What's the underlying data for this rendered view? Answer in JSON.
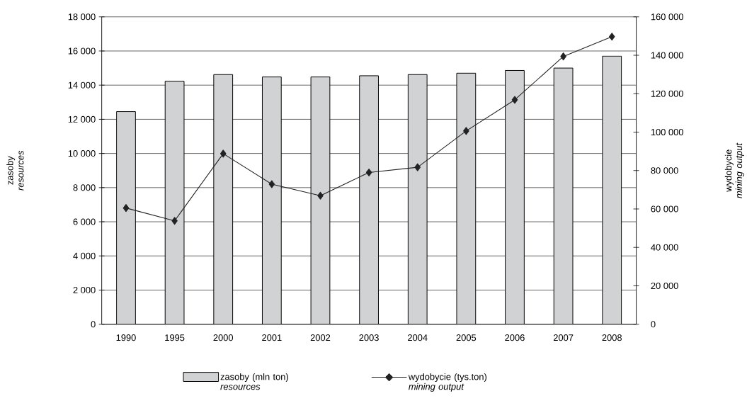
{
  "chart_data": {
    "type": "bar",
    "categories": [
      "1990",
      "1995",
      "2000",
      "2001",
      "2002",
      "2003",
      "2004",
      "2005",
      "2006",
      "2007",
      "2008"
    ],
    "series": [
      {
        "name": "zasoby (mln ton) *resources*",
        "color": "#d1d2d4",
        "values": [
          12450,
          14230,
          14620,
          14480,
          14480,
          14550,
          14620,
          14700,
          14860,
          15000,
          15700
        ]
      },
      {
        "name": "wydobycie (tys.ton) *mining output*",
        "type": "line",
        "axis": "y2",
        "marker": "diamond",
        "color": "#222222",
        "values": [
          60500,
          53800,
          88800,
          72900,
          66900,
          79000,
          81700,
          100600,
          116800,
          139400,
          149700
        ]
      }
    ],
    "ylabel": "zasoby *resources*",
    "y2label": "wydobycie *mining output*",
    "ylim": [
      0,
      18000
    ],
    "yticks": [
      0,
      {
        "value": 2000,
        "label": "2 000"
      },
      {
        "value": 4000,
        "label": "4 000"
      },
      {
        "value": 6000,
        "label": "6 000"
      },
      {
        "value": 8000,
        "label": "8 000"
      },
      {
        "value": 10000,
        "label": "10 000"
      },
      {
        "value": 12000,
        "label": "12 000"
      },
      {
        "value": 14000,
        "label": "14 000"
      },
      {
        "value": 16000,
        "label": "16 000"
      },
      {
        "value": 18000,
        "label": "18 000"
      }
    ],
    "y2lim": [
      0,
      160000
    ],
    "y2ticks": [
      0,
      {
        "value": 20000,
        "label": "20 000"
      },
      {
        "value": 40000,
        "label": "40 000"
      },
      {
        "value": 60000,
        "label": "60 000"
      },
      {
        "value": 80000,
        "label": "80 000"
      },
      {
        "value": 100000,
        "label": "100 000"
      },
      {
        "value": 120000,
        "label": "120 000"
      },
      {
        "value": 140000,
        "label": "140 000"
      },
      {
        "value": 160000,
        "label": "160 000"
      }
    ],
    "grid": "y",
    "legend": "bottom"
  }
}
